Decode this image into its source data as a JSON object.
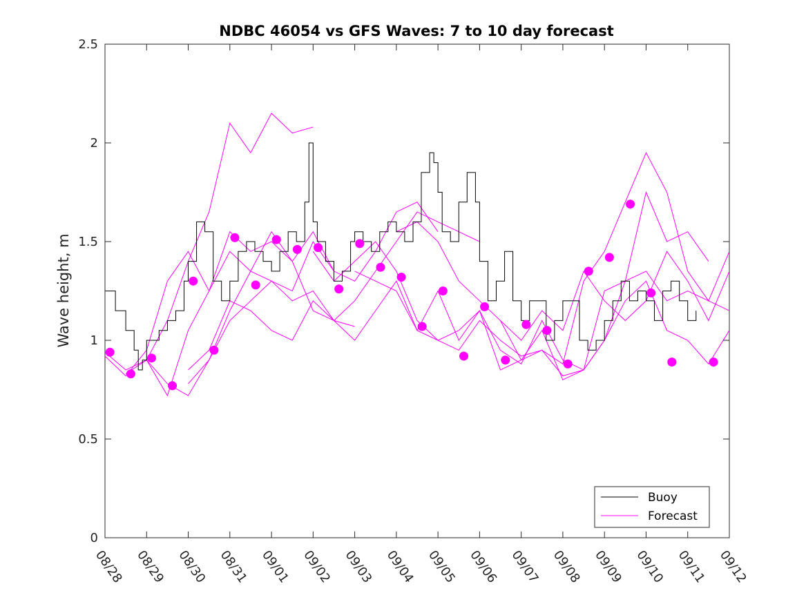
{
  "chart_data": {
    "type": "line",
    "title": "NDBC 46054 vs GFS Waves: 7 to 10 day forecast",
    "xlabel": "",
    "ylabel": "Wave height, m",
    "x_units": "days since 08/28",
    "xlim": [
      0,
      15
    ],
    "ylim": [
      0,
      2.5
    ],
    "x_ticks": [
      {
        "x": 0,
        "label": "08/28"
      },
      {
        "x": 1,
        "label": "08/29"
      },
      {
        "x": 2,
        "label": "08/30"
      },
      {
        "x": 3,
        "label": "08/31"
      },
      {
        "x": 4,
        "label": "09/01"
      },
      {
        "x": 5,
        "label": "09/02"
      },
      {
        "x": 6,
        "label": "09/03"
      },
      {
        "x": 7,
        "label": "09/04"
      },
      {
        "x": 8,
        "label": "09/05"
      },
      {
        "x": 9,
        "label": "09/06"
      },
      {
        "x": 10,
        "label": "09/07"
      },
      {
        "x": 11,
        "label": "09/08"
      },
      {
        "x": 12,
        "label": "09/09"
      },
      {
        "x": 13,
        "label": "09/10"
      },
      {
        "x": 14,
        "label": "09/11"
      },
      {
        "x": 15,
        "label": "09/12"
      }
    ],
    "y_ticks": [
      {
        "y": 0,
        "label": "0"
      },
      {
        "y": 0.5,
        "label": "0.5"
      },
      {
        "y": 1,
        "label": "1"
      },
      {
        "y": 1.5,
        "label": "1.5"
      },
      {
        "y": 2,
        "label": "2"
      },
      {
        "y": 2.5,
        "label": "2.5"
      }
    ],
    "legend": {
      "position": "bottom-right",
      "entries": [
        {
          "label": "Buoy",
          "color": "#000000"
        },
        {
          "label": "Forecast",
          "color": "#ff00ff"
        }
      ]
    },
    "buoy": {
      "name": "Buoy",
      "color": "#000000",
      "x": [
        0,
        0.25,
        0.5,
        0.7,
        0.8,
        0.9,
        1.0,
        1.3,
        1.5,
        1.7,
        1.9,
        2.0,
        2.2,
        2.4,
        2.6,
        2.8,
        3.0,
        3.2,
        3.4,
        3.6,
        3.8,
        4.0,
        4.2,
        4.4,
        4.6,
        4.8,
        4.9,
        5.0,
        5.1,
        5.3,
        5.5,
        5.7,
        5.9,
        6.0,
        6.2,
        6.4,
        6.6,
        6.8,
        7.0,
        7.2,
        7.4,
        7.6,
        7.8,
        7.9,
        8.0,
        8.1,
        8.3,
        8.5,
        8.7,
        8.9,
        9.0,
        9.2,
        9.4,
        9.6,
        9.8,
        10.0,
        10.2,
        10.4,
        10.6,
        10.8,
        11.0,
        11.2,
        11.4,
        11.6,
        11.8,
        12.0,
        12.2,
        12.4,
        12.6,
        12.8,
        13.0,
        13.2,
        13.4,
        13.6,
        13.8,
        14.0,
        14.2
      ],
      "y": [
        1.25,
        1.15,
        1.05,
        0.95,
        0.85,
        0.9,
        1.0,
        1.05,
        1.1,
        1.15,
        1.3,
        1.4,
        1.6,
        1.55,
        1.3,
        1.2,
        1.3,
        1.45,
        1.5,
        1.45,
        1.4,
        1.35,
        1.45,
        1.55,
        1.5,
        1.7,
        2.0,
        1.6,
        1.5,
        1.4,
        1.3,
        1.35,
        1.5,
        1.55,
        1.5,
        1.45,
        1.55,
        1.6,
        1.55,
        1.5,
        1.6,
        1.85,
        1.95,
        1.9,
        1.75,
        1.55,
        1.5,
        1.7,
        1.85,
        1.7,
        1.4,
        1.2,
        1.3,
        1.45,
        1.2,
        1.1,
        1.2,
        1.2,
        1.0,
        1.1,
        1.2,
        1.2,
        1.0,
        0.95,
        1.0,
        1.1,
        1.2,
        1.3,
        1.2,
        1.25,
        1.2,
        1.1,
        1.25,
        1.3,
        1.2,
        1.1,
        1.15
      ]
    },
    "forecast_runs": [
      {
        "name": "Forecast",
        "x": [
          0,
          0.5,
          1.0,
          1.5,
          2.0,
          2.5,
          3.0,
          3.5,
          4.0,
          4.5,
          5.0
        ],
        "y": [
          0.94,
          0.85,
          0.9,
          1.1,
          1.4,
          1.65,
          2.1,
          1.95,
          2.15,
          2.05,
          2.08
        ]
      },
      {
        "name": "Forecast",
        "x": [
          0,
          0.5,
          1.0,
          1.5,
          2.0,
          2.5,
          3.0,
          3.5,
          4.0,
          4.5,
          5.0,
          5.5
        ],
        "y": [
          0.92,
          0.82,
          0.95,
          1.3,
          1.45,
          1.25,
          1.55,
          1.45,
          1.5,
          1.4,
          1.55,
          1.35
        ]
      },
      {
        "name": "Forecast",
        "x": [
          0.5,
          1.0,
          1.5,
          2.0,
          2.5,
          3.0,
          3.5,
          4.0,
          4.5,
          5.0,
          5.5,
          6.0,
          6.5,
          7.0,
          7.5,
          8.0
        ],
        "y": [
          0.83,
          0.9,
          0.72,
          1.05,
          1.25,
          1.45,
          1.35,
          1.3,
          1.25,
          1.5,
          1.35,
          1.3,
          1.45,
          1.65,
          1.7,
          1.55
        ]
      },
      {
        "name": "Forecast",
        "x": [
          1.0,
          1.5,
          2.0,
          2.5,
          3.0,
          3.5,
          4.0,
          4.5,
          5.0,
          5.5,
          6.0,
          6.5,
          7.0,
          7.5,
          8.0,
          8.5,
          9.0
        ],
        "y": [
          0.9,
          0.78,
          0.72,
          0.9,
          1.15,
          1.35,
          1.55,
          1.4,
          1.15,
          1.1,
          1.2,
          1.35,
          1.5,
          1.65,
          1.6,
          1.55,
          1.5
        ]
      },
      {
        "name": "Forecast",
        "x": [
          2.0,
          2.5,
          3.0,
          3.5,
          4.0,
          4.5,
          5.0,
          5.5,
          6.0,
          6.5,
          7.0,
          7.5,
          8.0,
          8.5,
          9.0,
          9.5,
          10.0,
          10.5,
          11.0,
          11.5,
          12.0,
          12.5,
          13.0,
          13.5,
          14.0,
          14.5,
          15.0
        ],
        "y": [
          0.78,
          0.9,
          1.1,
          1.2,
          1.3,
          1.2,
          1.25,
          1.1,
          1.0,
          1.15,
          1.3,
          1.05,
          1.0,
          0.95,
          1.1,
          1.0,
          0.92,
          0.95,
          0.88,
          1.3,
          1.45,
          1.7,
          1.95,
          1.75,
          1.35,
          1.2,
          1.45
        ]
      },
      {
        "name": "Forecast",
        "x": [
          2.0,
          2.5,
          3.0,
          3.5,
          4.0,
          4.5,
          5.0,
          5.5,
          6.0
        ],
        "y": [
          0.85,
          0.95,
          1.2,
          1.15,
          1.05,
          1.0,
          1.2,
          1.1,
          1.07
        ]
      },
      {
        "name": "Forecast",
        "x": [
          5.0,
          5.5,
          6.0,
          6.5,
          7.0,
          7.5,
          8.0,
          8.5,
          9.0,
          9.5,
          10.0,
          10.5,
          11.0,
          11.5,
          12.0,
          12.5,
          13.0,
          13.5,
          14.0,
          14.5,
          15.0
        ],
        "y": [
          1.45,
          1.3,
          1.4,
          1.5,
          1.35,
          1.1,
          1.0,
          1.05,
          1.15,
          0.95,
          0.88,
          1.1,
          0.9,
          0.85,
          1.0,
          1.2,
          1.3,
          1.05,
          1.0,
          0.88,
          1.05
        ]
      },
      {
        "name": "Forecast",
        "x": [
          6.0,
          6.5,
          7.0,
          7.5,
          8.0,
          8.5,
          9.0,
          9.5,
          10.0,
          10.5,
          11.0,
          11.5,
          12.0,
          12.5,
          13.0,
          13.5,
          14.0,
          14.5,
          15.0
        ],
        "y": [
          1.35,
          1.3,
          1.25,
          1.05,
          1.25,
          1.0,
          1.15,
          0.85,
          0.9,
          1.05,
          0.8,
          0.85,
          1.25,
          1.3,
          1.35,
          1.2,
          1.25,
          1.2,
          1.15
        ]
      },
      {
        "name": "Forecast",
        "x": [
          7.0,
          7.5,
          8.0,
          8.5,
          9.0,
          9.5,
          10.0,
          10.5,
          11.0,
          11.5,
          12.0,
          12.5,
          13.0,
          13.5,
          14.0,
          14.5
        ],
        "y": [
          1.55,
          1.6,
          1.5,
          1.3,
          1.2,
          1.1,
          0.9,
          0.95,
          0.82,
          0.85,
          1.0,
          1.3,
          1.75,
          1.5,
          1.55,
          1.4
        ]
      },
      {
        "name": "Forecast",
        "x": [
          9.5,
          10.0,
          10.5,
          11.0,
          11.5,
          12.0,
          12.5,
          13.0,
          13.5,
          14.0,
          14.5,
          15.0
        ],
        "y": [
          1.1,
          1.0,
          1.15,
          1.05,
          1.35,
          1.2,
          1.1,
          1.2,
          1.45,
          1.3,
          1.1,
          1.35
        ]
      }
    ],
    "forecast_markers": {
      "name": "Forecast",
      "color": "#ff00ff",
      "x": [
        0.12,
        0.62,
        1.12,
        1.62,
        2.12,
        2.62,
        3.12,
        3.62,
        4.12,
        4.62,
        5.12,
        5.62,
        6.12,
        6.62,
        7.12,
        7.62,
        8.12,
        8.62,
        9.12,
        9.62,
        10.12,
        10.62,
        11.12,
        11.62,
        12.12,
        12.62,
        13.12,
        13.62,
        14.62
      ],
      "y": [
        0.94,
        0.83,
        0.91,
        0.77,
        1.3,
        0.95,
        1.52,
        1.28,
        1.51,
        1.46,
        1.47,
        1.26,
        1.49,
        1.37,
        1.32,
        1.07,
        1.25,
        0.92,
        1.17,
        0.9,
        1.08,
        1.05,
        0.88,
        1.35,
        1.42,
        1.69,
        1.24,
        0.89,
        0.89
      ]
    },
    "grid": false
  }
}
